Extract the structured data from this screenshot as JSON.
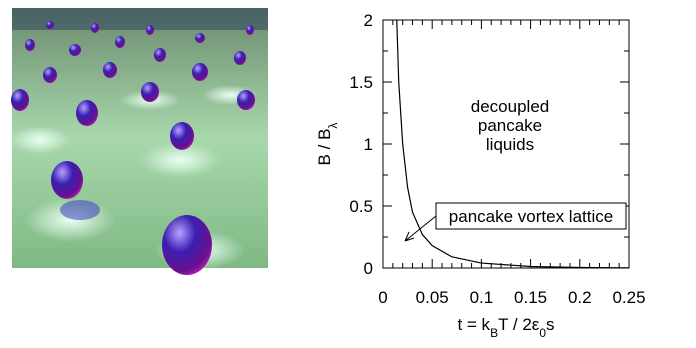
{
  "chart_data": {
    "type": "line",
    "xlabel": [
      {
        "text": "t = k"
      },
      {
        "text": "B",
        "sub": true
      },
      {
        "text": "T / 2ε"
      },
      {
        "text": "0",
        "sub": true
      },
      {
        "text": "s"
      }
    ],
    "ylabel": [
      {
        "text": "B / B"
      },
      {
        "text": "λ",
        "sub": true
      }
    ],
    "x": [
      0.014,
      0.016,
      0.02,
      0.025,
      0.03,
      0.04,
      0.05,
      0.07,
      0.1,
      0.15,
      0.2,
      0.25
    ],
    "series": [
      {
        "color": "#000000",
        "values": [
          2,
          1.5,
          1.0,
          0.65,
          0.45,
          0.27,
          0.18,
          0.09,
          0.04,
          0.012,
          0.004,
          0.001
        ]
      }
    ],
    "xlim": [
      0,
      0.25
    ],
    "ylim": [
      0,
      2
    ],
    "xticks": [
      0,
      0.05,
      0.1,
      0.15,
      0.2,
      0.25
    ],
    "yticks": [
      0,
      0.5,
      1,
      1.5,
      2
    ],
    "minor_xticks": [
      0.01,
      0.02,
      0.03,
      0.04,
      0.06,
      0.07,
      0.08,
      0.09,
      0.11,
      0.12,
      0.13,
      0.14,
      0.16,
      0.17,
      0.18,
      0.19,
      0.21,
      0.22,
      0.23,
      0.24
    ],
    "minor_yticks": [
      0.25,
      0.75,
      1.25,
      1.75
    ],
    "annotations": [
      [
        "decoupled",
        "pancake",
        "liquids"
      ],
      [
        "pancake vortex lattice"
      ]
    ]
  }
}
